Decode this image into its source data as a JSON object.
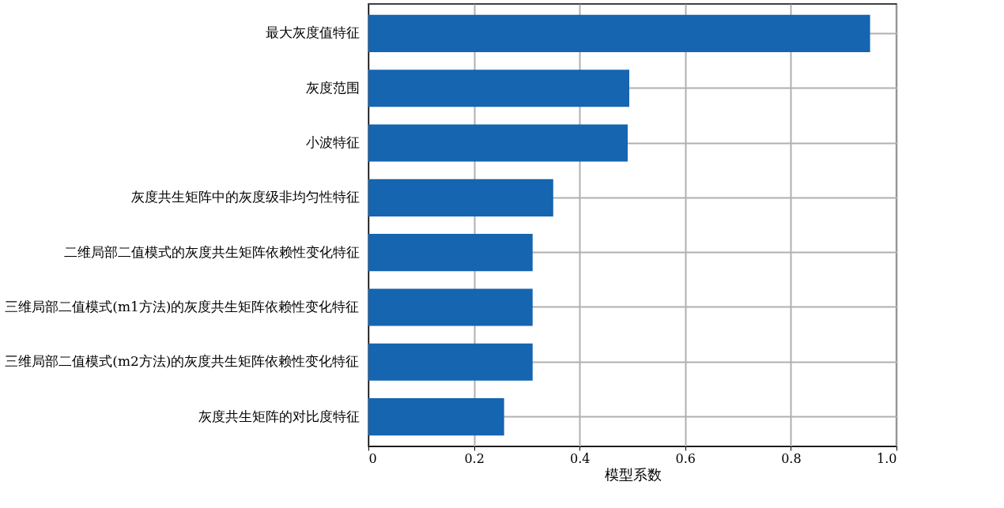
{
  "chart_data": {
    "type": "bar",
    "orientation": "horizontal",
    "xlabel": "模型系数",
    "categories": [
      "最大灰度值特征",
      "灰度范围",
      "小波特征",
      "灰度共生矩阵中的灰度级非均匀性特征",
      "二维局部二值模式的灰度共生矩阵依赖性变化特征",
      "三维局部二值模式(m1方法)的灰度共生矩阵依赖性变化特征",
      "三维局部二值模式(m2方法)的灰度共生矩阵依赖性变化特征",
      "灰度共生矩阵的对比度特征"
    ],
    "values": [
      0.95,
      0.494,
      0.491,
      0.35,
      0.311,
      0.311,
      0.311,
      0.257
    ],
    "color": "#1565b0",
    "xlim": [
      0,
      1.0
    ],
    "xticks": [
      {
        "value": 0,
        "label": "0"
      },
      0.2,
      0.4,
      0.6,
      0.8,
      {
        "value": 1.0,
        "label": "1.0"
      }
    ],
    "grid": true
  }
}
